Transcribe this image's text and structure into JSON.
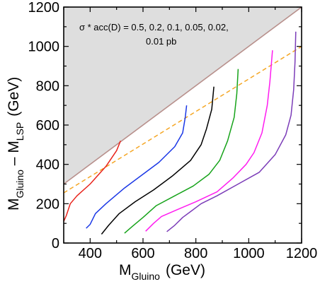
{
  "chart_data": {
    "type": "line",
    "title": "",
    "xlabel": {
      "main": "M",
      "sub": "Gluino",
      "unit": "(GeV)"
    },
    "ylabel": {
      "main": "M",
      "sub1": "Gluino",
      "minus": " – M",
      "sub2": "LSP",
      "unit": "(GeV)"
    },
    "xlim": [
      300,
      1200
    ],
    "ylim": [
      0,
      1200
    ],
    "xticks": [
      400,
      600,
      800,
      1000,
      1200
    ],
    "yticks": [
      0,
      200,
      400,
      600,
      800,
      1000,
      1200
    ],
    "grid": false,
    "annotation_line1": "σ * acc(D) = 0.5,  0.2,  0.1,  0.05,  0.02,",
    "annotation_line2": "0.01 pb",
    "excluded_region": {
      "fill": "#dedede",
      "boundary_color": "#b8908c",
      "boundary": [
        [
          300,
          300
        ],
        [
          1200,
          1200
        ]
      ]
    },
    "reference_line": {
      "color": "#f5a623",
      "style": "dashed",
      "points": [
        [
          300,
          255
        ],
        [
          1200,
          1000
        ]
      ]
    },
    "series": [
      {
        "value": "0.5",
        "color": "#e8231b",
        "points": [
          [
            300,
            110
          ],
          [
            310,
            140
          ],
          [
            325,
            200
          ],
          [
            350,
            240
          ],
          [
            400,
            300
          ],
          [
            460,
            390
          ],
          [
            500,
            470
          ],
          [
            515,
            520
          ]
        ]
      },
      {
        "value": "0.2",
        "color": "#1a37e6",
        "points": [
          [
            385,
            75
          ],
          [
            400,
            95
          ],
          [
            420,
            150
          ],
          [
            460,
            200
          ],
          [
            530,
            280
          ],
          [
            600,
            350
          ],
          [
            660,
            410
          ],
          [
            720,
            490
          ],
          [
            750,
            560
          ],
          [
            760,
            640
          ],
          [
            765,
            700
          ]
        ]
      },
      {
        "value": "0.1",
        "color": "#000000",
        "points": [
          [
            443,
            45
          ],
          [
            470,
            90
          ],
          [
            510,
            150
          ],
          [
            570,
            210
          ],
          [
            640,
            270
          ],
          [
            710,
            340
          ],
          [
            780,
            420
          ],
          [
            820,
            500
          ],
          [
            840,
            580
          ],
          [
            860,
            680
          ],
          [
            868,
            795
          ]
        ]
      },
      {
        "value": "0.05",
        "color": "#16a31a",
        "points": [
          [
            530,
            50
          ],
          [
            560,
            85
          ],
          [
            600,
            130
          ],
          [
            650,
            190
          ],
          [
            720,
            240
          ],
          [
            790,
            290
          ],
          [
            850,
            350
          ],
          [
            890,
            420
          ],
          [
            920,
            520
          ],
          [
            945,
            640
          ],
          [
            955,
            760
          ],
          [
            960,
            885
          ]
        ]
      },
      {
        "value": "0.02",
        "color": "#ff1cf0",
        "points": [
          [
            610,
            60
          ],
          [
            640,
            100
          ],
          [
            670,
            135
          ],
          [
            730,
            170
          ],
          [
            800,
            210
          ],
          [
            880,
            260
          ],
          [
            940,
            330
          ],
          [
            990,
            400
          ],
          [
            1020,
            460
          ],
          [
            1050,
            560
          ],
          [
            1070,
            700
          ],
          [
            1080,
            820
          ],
          [
            1090,
            980
          ]
        ]
      },
      {
        "value": "0.01",
        "color": "#7b3cb8",
        "points": [
          [
            690,
            58
          ],
          [
            720,
            90
          ],
          [
            750,
            130
          ],
          [
            780,
            160
          ],
          [
            820,
            200
          ],
          [
            880,
            240
          ],
          [
            960,
            300
          ],
          [
            1040,
            360
          ],
          [
            1100,
            450
          ],
          [
            1140,
            550
          ],
          [
            1160,
            650
          ],
          [
            1170,
            780
          ],
          [
            1175,
            920
          ],
          [
            1178,
            1075
          ]
        ]
      }
    ]
  }
}
